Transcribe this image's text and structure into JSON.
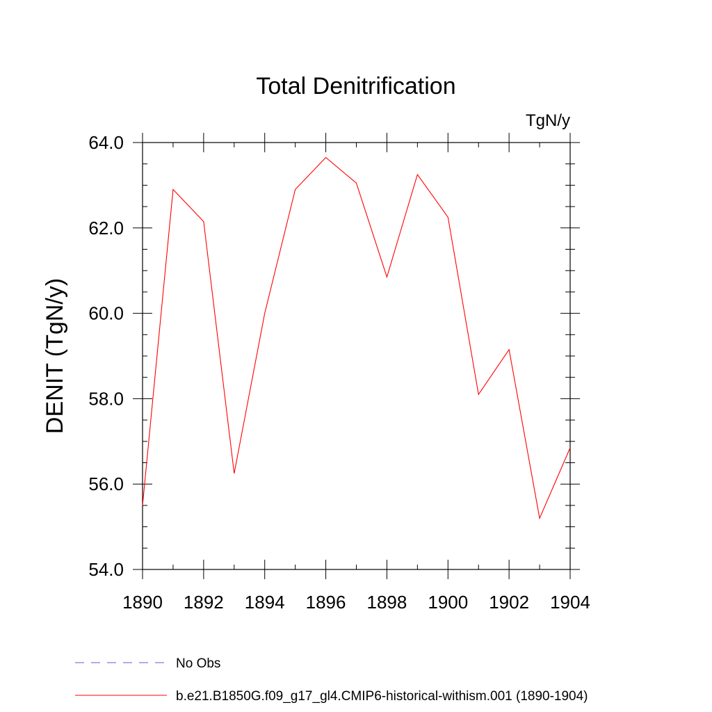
{
  "chart_data": {
    "type": "line",
    "title": "Total Denitrification",
    "units_label": "TgN/y",
    "xlabel": "",
    "ylabel": "DENIT  (TgN/y)",
    "xlim": [
      1890,
      1904
    ],
    "ylim": [
      54,
      64
    ],
    "x_ticks": [
      1890,
      1892,
      1894,
      1896,
      1898,
      1900,
      1902,
      1904
    ],
    "x_tick_labels": [
      "1890",
      "1892",
      "1894",
      "1896",
      "1898",
      "1900",
      "1902",
      "1904"
    ],
    "y_ticks": [
      54,
      56,
      58,
      60,
      62,
      64
    ],
    "y_tick_labels": [
      "54.0",
      "56.0",
      "58.0",
      "60.0",
      "62.0",
      "64.0"
    ],
    "y_minor_step": 0.5,
    "x_minor_step": 1,
    "grid": false,
    "legend_position": "bottom-left",
    "series": [
      {
        "name": "b.e21.B1850G.f09_g17_gl4.CMIP6-historical-withism.001 (1890-1904)",
        "color": "#ff0000",
        "style": "solid",
        "x": [
          1890,
          1891,
          1892,
          1893,
          1894,
          1895,
          1896,
          1897,
          1898,
          1899,
          1900,
          1901,
          1902,
          1903,
          1904
        ],
        "values": [
          55.5,
          62.9,
          62.15,
          56.25,
          60.0,
          62.9,
          63.65,
          63.05,
          60.85,
          63.25,
          62.25,
          58.1,
          59.15,
          55.2,
          56.85
        ]
      }
    ],
    "legend": [
      {
        "label": "No Obs",
        "color": "#6a5acd",
        "style": "dashed"
      },
      {
        "label": "b.e21.B1850G.f09_g17_gl4.CMIP6-historical-withism.001 (1890-1904)",
        "color": "#ff0000",
        "style": "solid"
      }
    ]
  }
}
